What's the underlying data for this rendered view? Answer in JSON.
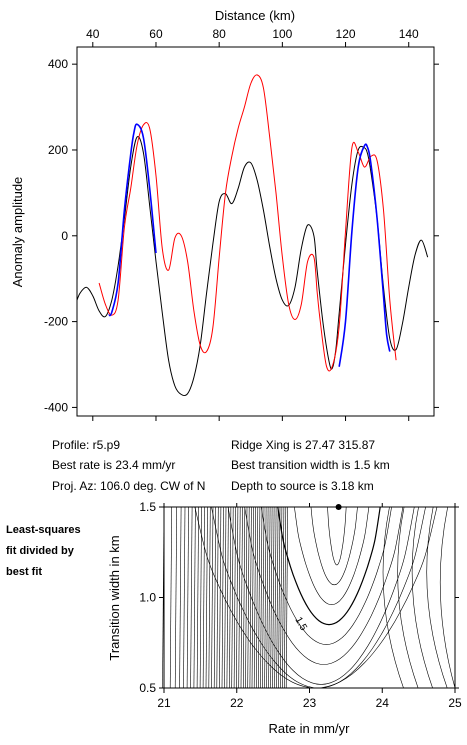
{
  "info": {
    "profile": "Profile: r5.p9",
    "best_rate": "Best rate is 23.4 mm/yr",
    "proj_az": "Proj. Az: 106.0 deg. CW of N",
    "ridge_xing": "Ridge Xing is 27.47 315.87",
    "best_width": "Best transition width is 1.5 km",
    "depth": "Depth to source is   3.18 km"
  },
  "side_note": [
    "Least-squares",
    "fit divided by",
    "best fit"
  ],
  "colors": {
    "observed": "#000000",
    "model": "#ff0000",
    "fit_window": "#0000ff"
  },
  "chart_data": [
    {
      "type": "line",
      "title": "",
      "xlabel": "Distance (km)",
      "ylabel": "Anomaly amplitude",
      "xlim": [
        35,
        148
      ],
      "ylim": [
        -420,
        440
      ],
      "xticks": [
        "40",
        "60",
        "80",
        "100",
        "120",
        "140"
      ],
      "yticks": [
        "-400",
        "-200",
        "0",
        "200",
        "400"
      ],
      "x_axis_position": "top",
      "series": [
        {
          "id": "observed",
          "color": "#000000",
          "x": [
            35,
            36,
            38,
            40,
            42,
            44,
            46,
            48,
            50,
            52,
            54,
            56,
            58,
            60,
            62,
            64,
            66,
            68,
            70,
            72,
            74,
            76,
            78,
            80,
            82,
            84,
            86,
            88,
            90,
            92,
            94,
            96,
            98,
            100,
            102,
            104,
            106,
            108,
            110,
            111,
            113,
            115,
            116,
            117,
            118,
            120,
            122,
            124,
            126,
            127,
            128,
            130,
            132,
            134,
            136,
            138,
            140,
            142,
            144,
            146
          ],
          "y": [
            -150,
            -133,
            -120,
            -140,
            -175,
            -188,
            -150,
            -70,
            40,
            160,
            230,
            195,
            70,
            -60,
            -180,
            -290,
            -350,
            -370,
            -368,
            -330,
            -255,
            -135,
            -20,
            80,
            98,
            75,
            110,
            160,
            170,
            130,
            60,
            -25,
            -100,
            -150,
            -162,
            -120,
            -30,
            25,
            0,
            -80,
            -210,
            -300,
            -305,
            -260,
            -180,
            -20,
            120,
            200,
            205,
            190,
            150,
            40,
            -120,
            -240,
            -265,
            -205,
            -120,
            -45,
            -10,
            -50
          ]
        },
        {
          "id": "model",
          "color": "#ff0000",
          "x": [
            42,
            44,
            46,
            48,
            50,
            52,
            54,
            56,
            58,
            60,
            62,
            64,
            66,
            68,
            70,
            72,
            74,
            76,
            78,
            80,
            82,
            84,
            86,
            88,
            90,
            92,
            94,
            96,
            98,
            100,
            102,
            104,
            106,
            108,
            110,
            111,
            112,
            114,
            116,
            118,
            120,
            122,
            124,
            126,
            128,
            130,
            132,
            134,
            136
          ],
          "y": [
            -110,
            -160,
            -185,
            -150,
            20,
            110,
            210,
            258,
            250,
            140,
            -30,
            -80,
            -5,
            0,
            -60,
            -175,
            -255,
            -270,
            -215,
            -50,
            100,
            185,
            250,
            300,
            355,
            375,
            345,
            230,
            100,
            -50,
            -160,
            -195,
            -160,
            -60,
            -50,
            -130,
            -200,
            -305,
            -300,
            -210,
            10,
            205,
            195,
            160,
            185,
            175,
            60,
            -150,
            -290
          ]
        },
        {
          "id": "fit_window",
          "color": "#0000ff",
          "segments": [
            {
              "x": [
                45,
                46,
                48,
                50,
                52,
                53,
                54,
                56,
                58,
                60
              ],
              "y": [
                -185,
                -178,
                -110,
                60,
                190,
                240,
                260,
                230,
                110,
                -40
              ]
            },
            {
              "x": [
                118,
                120,
                122,
                124,
                126,
                127,
                128,
                130,
                132,
                133,
                134
              ],
              "y": [
                -305,
                -200,
                10,
                160,
                210,
                205,
                170,
                40,
                -140,
                -230,
                -270
              ]
            }
          ]
        }
      ]
    },
    {
      "type": "contour",
      "title": "",
      "xlabel": "Rate in mm/yr",
      "ylabel": "Transition width in km",
      "xlim": [
        21,
        25
      ],
      "ylim": [
        0.5,
        1.5
      ],
      "xticks": [
        "21",
        "22",
        "23",
        "24",
        "25"
      ],
      "yticks": [
        "0.5",
        "1.0",
        "1.5"
      ],
      "best_fit_point": {
        "rate": 23.4,
        "width": 1.5
      },
      "labeled_contour": "1.5"
    }
  ]
}
